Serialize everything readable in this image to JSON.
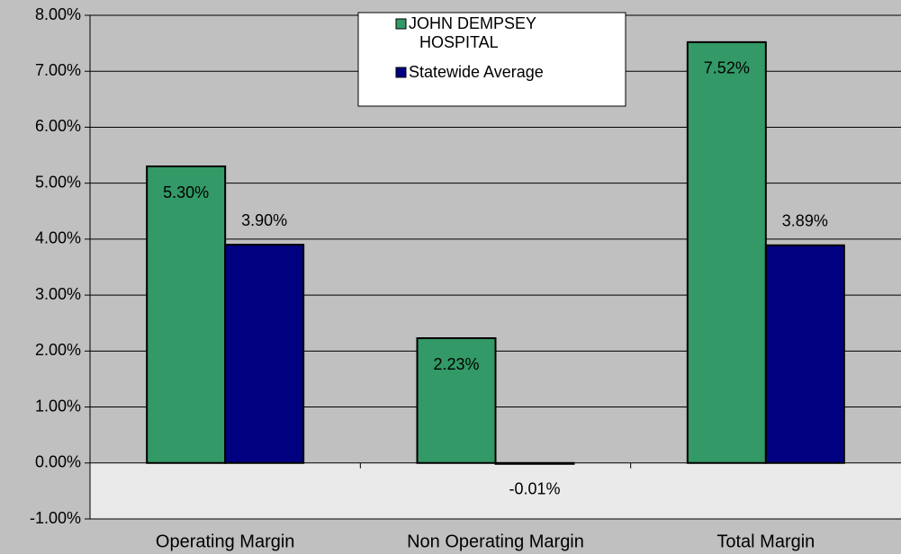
{
  "chart_data": {
    "type": "bar",
    "categories": [
      "Operating Margin",
      "Non Operating Margin",
      "Total Margin"
    ],
    "series": [
      {
        "name": "JOHN DEMPSEY HOSPITAL",
        "color": "#339966",
        "values": [
          5.3,
          2.23,
          7.52
        ],
        "value_labels": [
          "5.30%",
          "2.23%",
          "7.52%"
        ]
      },
      {
        "name": "Statewide Average",
        "color": "#000080",
        "values": [
          3.9,
          -0.01,
          3.89
        ],
        "value_labels": [
          "3.90%",
          "-0.01%",
          "3.89%"
        ]
      }
    ],
    "ylim": [
      -1,
      8
    ],
    "yticks": [
      {
        "value": -1,
        "label": "-1.00%"
      },
      {
        "value": 0,
        "label": "0.00%"
      },
      {
        "value": 1,
        "label": "1.00%"
      },
      {
        "value": 2,
        "label": "2.00%"
      },
      {
        "value": 3,
        "label": "3.00%"
      },
      {
        "value": 4,
        "label": "4.00%"
      },
      {
        "value": 5,
        "label": "5.00%"
      },
      {
        "value": 6,
        "label": "6.00%"
      },
      {
        "value": 7,
        "label": "7.00%"
      },
      {
        "value": 8,
        "label": "8.00%"
      }
    ],
    "grid": true,
    "legend": "top"
  }
}
